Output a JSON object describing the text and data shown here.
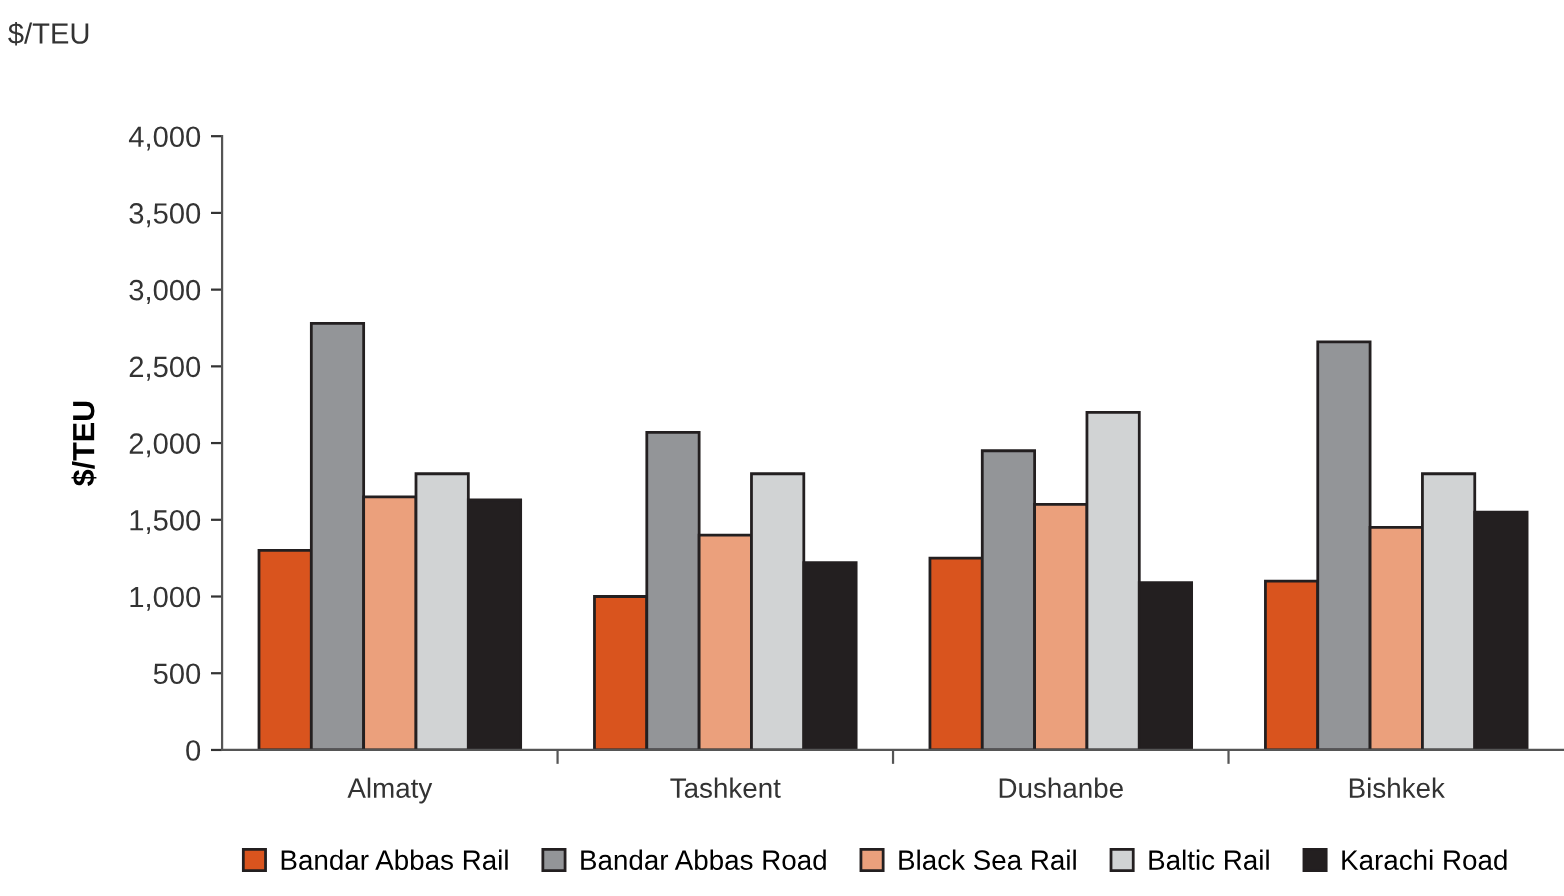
{
  "chart_data": {
    "type": "bar",
    "ylabel": "$/TEU",
    "annotations": [
      "$/TEU"
    ],
    "categories": [
      "Almaty",
      "Tashkent",
      "Dushanbe",
      "Bishkek"
    ],
    "series": [
      {
        "name": "Bandar Abbas Rail",
        "color": "#d9541e",
        "values": [
          1300,
          1000,
          1250,
          1100
        ]
      },
      {
        "name": "Bandar Abbas Road",
        "color": "#939598",
        "values": [
          2780,
          2070,
          1950,
          2660
        ]
      },
      {
        "name": "Black Sea Rail",
        "color": "#eba07c",
        "values": [
          1650,
          1400,
          1600,
          1450
        ]
      },
      {
        "name": "Baltic Rail",
        "color": "#d1d3d4",
        "values": [
          1800,
          1800,
          2200,
          1800
        ]
      },
      {
        "name": "Karachi Road",
        "color": "#231f20",
        "values": [
          1630,
          1220,
          1090,
          1550
        ]
      }
    ],
    "ylim": [
      0,
      4000
    ],
    "yticks": [
      {
        "value": 0,
        "label": "0"
      },
      {
        "value": 500,
        "label": "500"
      },
      {
        "value": 1000,
        "label": "1,000"
      },
      {
        "value": 1500,
        "label": "1,500"
      },
      {
        "value": 2000,
        "label": "2,000"
      },
      {
        "value": 2500,
        "label": "2,500"
      },
      {
        "value": 3000,
        "label": "3,000"
      },
      {
        "value": 3500,
        "label": "3,500"
      },
      {
        "value": 4000,
        "label": "4,000"
      }
    ],
    "grid": false,
    "legend": "bottom"
  }
}
